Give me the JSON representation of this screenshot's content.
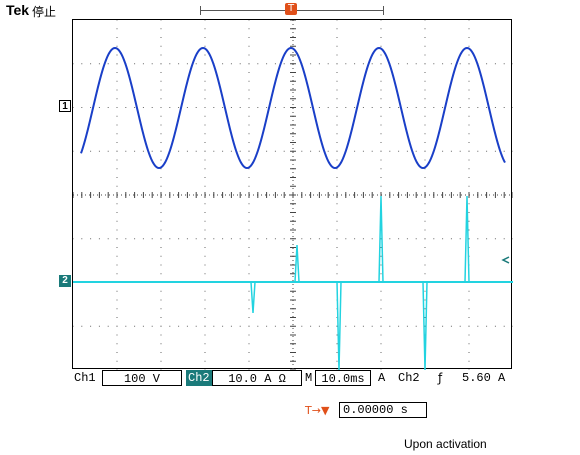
{
  "header": {
    "brand": "Tek",
    "status": "停止"
  },
  "channels": {
    "ch1_marker": "1",
    "ch2_marker": "2",
    "ch1_color": "#1a3fc8",
    "ch2_color": "#22d3e0"
  },
  "trigger": {
    "marker": "T",
    "offset_arrow": "→▼",
    "offset_value": "0.00000 s",
    "color": "#e0501a"
  },
  "readout": {
    "ch1_label": "Ch1",
    "ch1_scale": "100 V",
    "ch2_label": "Ch2",
    "ch2_scale": "10.0 A Ω",
    "timebase_prefix": "M",
    "timebase": "10.0ms",
    "trig_coupling": "A",
    "trig_source": "Ch2",
    "trig_slope": "ƒ",
    "trig_level": "5.60 A"
  },
  "caption": "Upon activation"
}
